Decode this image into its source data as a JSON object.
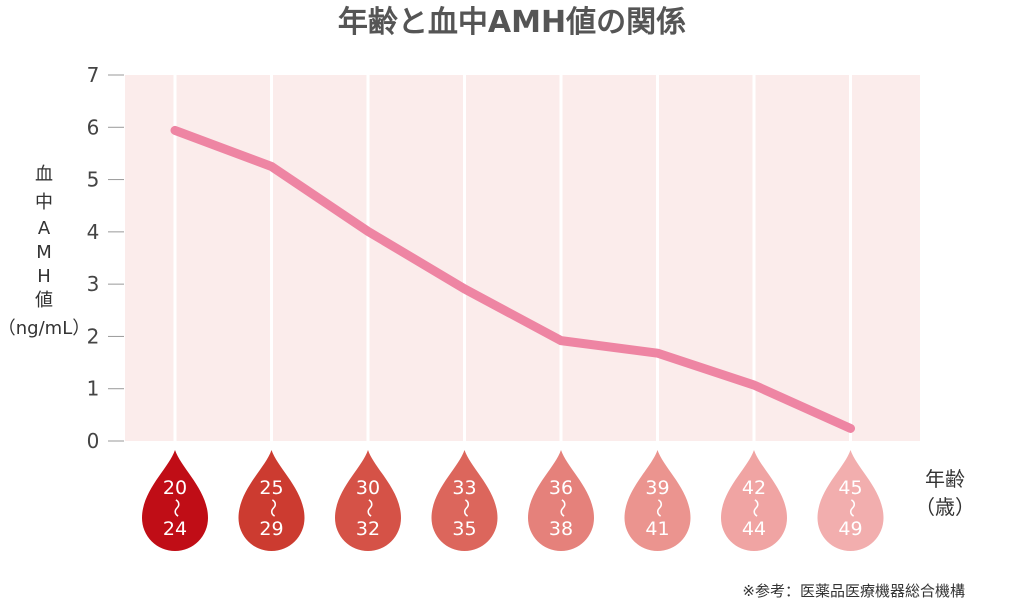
{
  "chart_data": {
    "type": "line",
    "title": "年齢と血中AMH値の関係",
    "ylabel_chars": [
      "血",
      "中",
      "A",
      "M",
      "H",
      "値"
    ],
    "ylabel_unit": "（ng/mL）",
    "xlabel_line1": "年齢",
    "xlabel_line2": "（歳）",
    "ylim": [
      0,
      7
    ],
    "yticks": [
      "0",
      "1",
      "2",
      "3",
      "4",
      "5",
      "6",
      "7"
    ],
    "categories": [
      {
        "from": "20",
        "to": "24"
      },
      {
        "from": "25",
        "to": "29"
      },
      {
        "from": "30",
        "to": "32"
      },
      {
        "from": "33",
        "to": "35"
      },
      {
        "from": "36",
        "to": "38"
      },
      {
        "from": "39",
        "to": "41"
      },
      {
        "from": "42",
        "to": "44"
      },
      {
        "from": "45",
        "to": "49"
      }
    ],
    "tilde": "〜",
    "series": [
      {
        "values": [
          5.94,
          5.25,
          4.01,
          2.91,
          1.92,
          1.68,
          1.07,
          0.24
        ]
      }
    ],
    "grid": true,
    "source_note": "※参考：医薬品医療機器総合機構"
  },
  "colors": {
    "plot_background": "#fbeceb",
    "line": "#ee85a3",
    "grid": "#ffffff",
    "drops": [
      "#c00d16",
      "#cc3b30",
      "#d55247",
      "#dc665c",
      "#e5817b",
      "#eb948f",
      "#f0a4a3",
      "#f2aeae"
    ]
  }
}
